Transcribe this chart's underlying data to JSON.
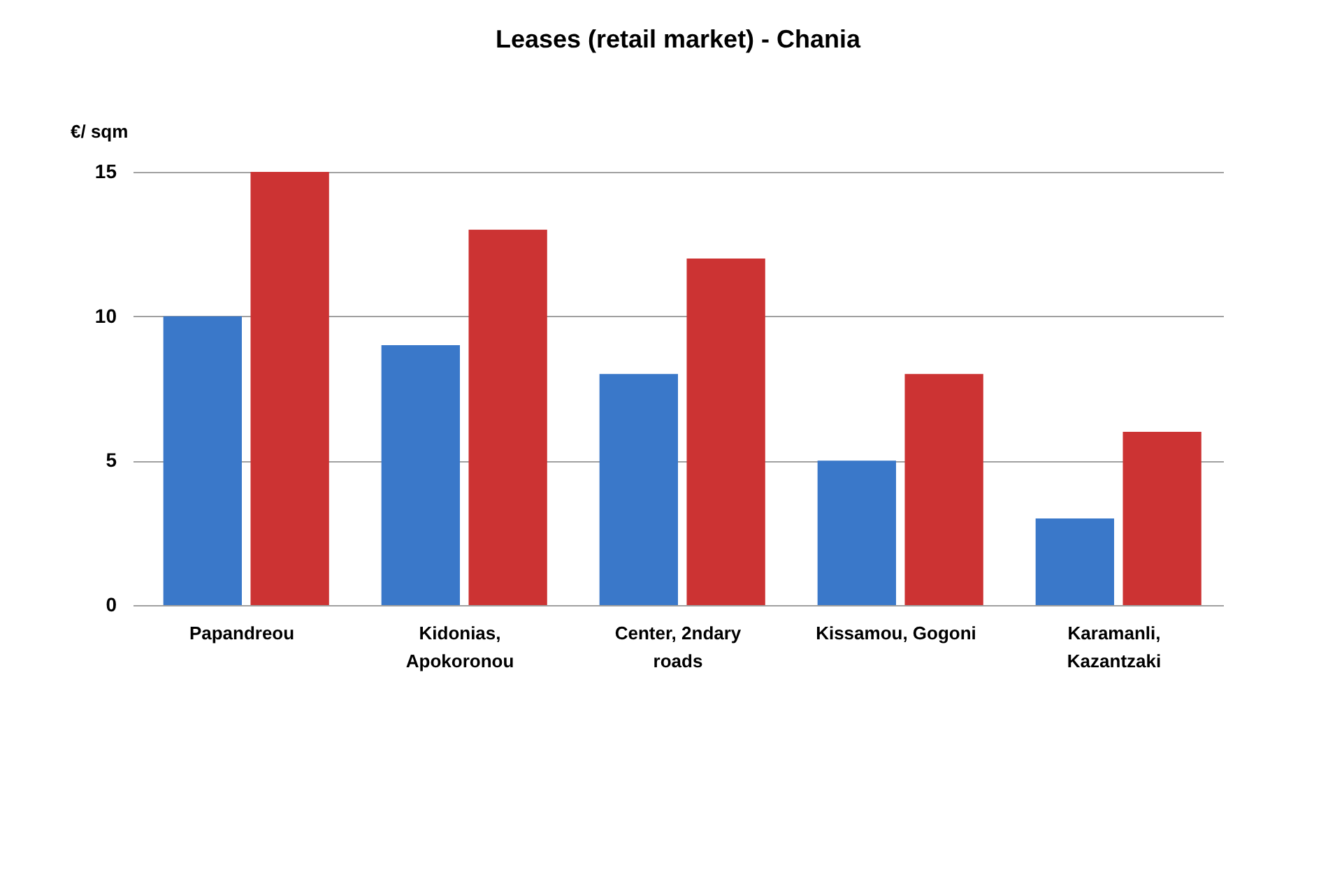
{
  "chart_data": {
    "type": "bar",
    "title": "Leases (retail market) - Chania",
    "ylabel": "€/ sqm",
    "categories": [
      "Papandreou",
      "Kidonias, Apokoronou",
      "Center, 2ndary roads",
      "Kissamou, Gogoni",
      "Karamanli, Kazantzaki"
    ],
    "series": [
      {
        "color": "#3a78c9",
        "values": [
          10,
          9,
          8,
          5,
          3
        ]
      },
      {
        "color": "#cc3333",
        "values": [
          15,
          13,
          12,
          8,
          6
        ]
      }
    ],
    "ylim": [
      0,
      15
    ],
    "yticks": [
      0,
      5,
      10,
      15
    ],
    "grid": "y",
    "legend": false
  }
}
